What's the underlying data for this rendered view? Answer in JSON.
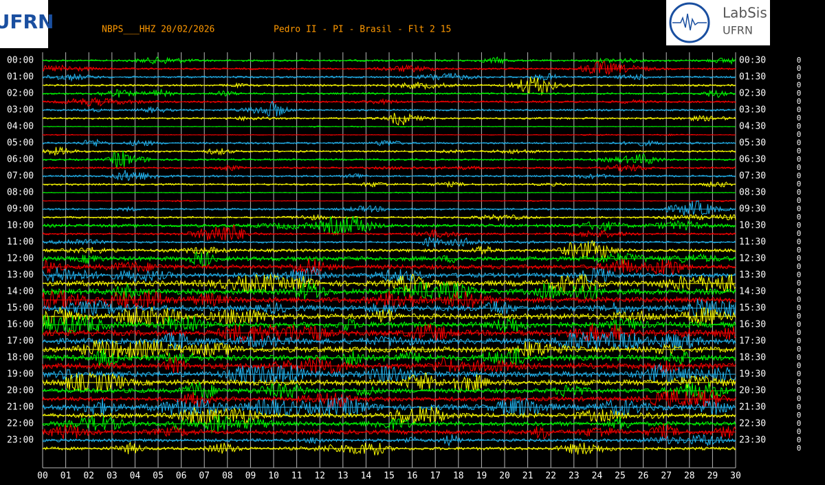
{
  "chart_data": {
    "type": "helicorder",
    "station": "NBPS___HHZ 20/02/2026",
    "title": "Pedro II - PI - Brasil - Flt 2 15",
    "logo_left": "UFRN",
    "logo_right": [
      "LabSis",
      "UFRN"
    ],
    "left_labels": [
      "00:00",
      "01:00",
      "02:00",
      "03:00",
      "04:00",
      "05:00",
      "06:00",
      "07:00",
      "08:00",
      "09:00",
      "10:00",
      "11:00",
      "12:00",
      "13:00",
      "14:00",
      "15:00",
      "16:00",
      "17:00",
      "18:00",
      "19:00",
      "20:00",
      "21:00",
      "22:00",
      "23:00"
    ],
    "right_labels": [
      "00:30",
      "01:30",
      "02:30",
      "03:30",
      "04:30",
      "05:30",
      "06:30",
      "07:30",
      "08:30",
      "09:30",
      "10:30",
      "11:30",
      "12:30",
      "13:30",
      "14:30",
      "15:30",
      "16:30",
      "17:30",
      "18:30",
      "19:30",
      "20:30",
      "21:30",
      "22:30",
      "23:30"
    ],
    "counts": [
      0,
      0,
      0,
      0,
      0,
      0,
      0,
      0,
      0,
      0,
      0,
      0,
      0,
      0,
      0,
      0,
      0,
      0,
      0,
      0,
      0,
      0,
      0,
      0,
      0,
      0,
      0,
      0,
      0,
      0,
      0,
      0,
      0,
      0,
      0,
      0,
      0,
      0,
      0,
      0,
      0,
      0,
      0,
      0,
      0,
      0,
      0,
      0
    ],
    "colors": [
      "#00ff00",
      "#ff0000",
      "#22b4f0",
      "#ffff00"
    ],
    "levels": [
      1,
      1,
      1,
      1,
      1,
      1,
      1,
      1,
      0,
      0,
      1,
      1,
      1,
      1,
      1,
      1,
      0,
      0,
      1,
      1,
      2,
      1,
      1,
      2,
      3,
      3,
      3,
      4,
      4,
      4,
      4,
      4,
      4,
      4,
      4,
      4,
      4,
      4,
      4,
      4,
      3,
      3,
      4,
      3,
      3,
      3,
      2,
      2
    ],
    "xlim": [
      0,
      30
    ],
    "xticks": [
      {
        "value": 0,
        "label": "00"
      },
      {
        "value": 1,
        "label": "01"
      },
      {
        "value": 2,
        "label": "02"
      },
      {
        "value": 3,
        "label": "03"
      },
      {
        "value": 4,
        "label": "04"
      },
      {
        "value": 5,
        "label": "05"
      },
      {
        "value": 6,
        "label": "06"
      },
      {
        "value": 7,
        "label": "07"
      },
      {
        "value": 8,
        "label": "08"
      },
      {
        "value": 9,
        "label": "09"
      },
      10,
      11,
      12,
      13,
      14,
      15,
      16,
      17,
      18,
      19,
      20,
      21,
      22,
      23,
      24,
      25,
      26,
      27,
      28,
      29,
      30
    ]
  }
}
